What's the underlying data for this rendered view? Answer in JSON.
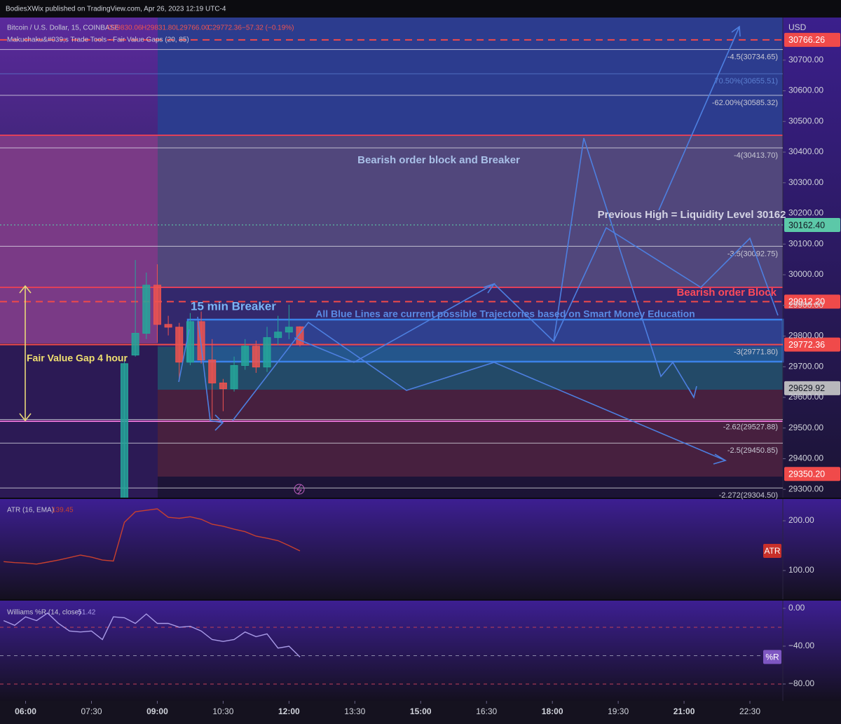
{
  "header": "BodiesXWix published on TradingView.com, Apr 26, 2023 12:19 UTC-4",
  "annotations": [
    "Bearish order block and Breaker",
    "Previous High = Liquidity Level 30162",
    "Bearish order Block",
    "15 min Breaker",
    "All Blue Lines are current possible Trajectories based on Smart Money Education",
    "Fair Value Gap 4 hour"
  ],
  "chart_data": [
    {
      "type": "candlestick",
      "title": "Bitcoin / U.S. Dollar, 15, COINBASE",
      "ohlc_labels": [
        "O29830.06",
        "H29831.80",
        "L29766.00",
        "C29772.36",
        "−57.32 (−0.19%)"
      ],
      "indicator": "Makuchaku&#039;s Trade Tools - Fair Value Gaps (20, 85)",
      "currency": "USD",
      "x": [
        "08:15",
        "08:30",
        "08:45",
        "09:00",
        "09:15",
        "09:30",
        "09:45",
        "10:00",
        "10:15",
        "10:30",
        "10:45",
        "11:00",
        "11:15",
        "11:30",
        "11:45",
        "12:00",
        "12:15"
      ],
      "open": [
        29250,
        29738,
        29809,
        29966,
        29838,
        29829,
        29715,
        29847,
        29722,
        29647,
        29628,
        29704,
        29767,
        29699,
        29795,
        29813,
        29830.06
      ],
      "high": [
        29722,
        30048,
        30007,
        30034,
        29866,
        29843,
        29875,
        29880,
        29790,
        29660,
        29733,
        29790,
        29785,
        29830,
        29866,
        29902,
        29831.8
      ],
      "low": [
        29200,
        29733,
        29790,
        29779,
        29802,
        29653,
        29705,
        29710,
        29528,
        29555,
        29619,
        29690,
        29680,
        29683,
        29770,
        29790,
        29766
      ],
      "close": [
        29710,
        29809,
        29966,
        29838,
        29829,
        29715,
        29847,
        29722,
        29647,
        29628,
        29704,
        29767,
        29699,
        29795,
        29813,
        29829,
        29772.36
      ],
      "up_color": "#26a69a",
      "down_color": "#ef5350",
      "xlim": [
        "05:25",
        "23:15"
      ],
      "xticks": [
        "06:00",
        "07:30",
        "09:00",
        "10:30",
        "12:00",
        "13:30",
        "15:00",
        "16:30",
        "18:00",
        "19:30",
        "21:00",
        "22:30"
      ],
      "ylim": [
        29273,
        30839
      ],
      "yticks": [
        {
          "value": 30700,
          "label": "30700.00"
        },
        {
          "value": 30600,
          "label": "30600.00"
        },
        {
          "value": 30500,
          "label": "30500.00"
        },
        {
          "value": 30400,
          "label": "30400.00"
        },
        {
          "value": 30300,
          "label": "30300.00"
        },
        {
          "value": 30200,
          "label": "30200.00"
        },
        {
          "value": 30100,
          "label": "30100.00"
        },
        {
          "value": 30000,
          "label": "30000.00"
        },
        {
          "value": 29900,
          "label": "29900.00"
        },
        {
          "value": 29800,
          "label": "29800.00"
        },
        {
          "value": 29700,
          "label": "29700.00"
        },
        {
          "value": 29600,
          "label": "29600.00"
        },
        {
          "value": 29500,
          "label": "29500.00"
        },
        {
          "value": 29400,
          "label": "29400.00"
        },
        {
          "value": 29300,
          "label": "29300.00"
        }
      ],
      "levels": [
        {
          "value": 30734.65,
          "label": "-4.5(30734.65)"
        },
        {
          "value": 30655.51,
          "label": "70.50%(30655.51)",
          "color": "#5b7fd0"
        },
        {
          "value": 30585.32,
          "label": "-62.00%(30585.32)"
        },
        {
          "value": 30413.7,
          "label": "-4(30413.70)"
        },
        {
          "value": 30092.75,
          "label": "-3.5(30092.75)"
        },
        {
          "value": 29771.8,
          "label": "-3(29771.80)"
        },
        {
          "value": 29527.88,
          "label": "-2.62(29527.88)"
        },
        {
          "value": 29450.85,
          "label": "-2.5(29450.85)"
        },
        {
          "value": 29304.5,
          "label": "-2.272(29304.50)"
        }
      ],
      "price_tags": [
        {
          "value": 30766.26,
          "label": "30766.26",
          "color": "#f04a4a",
          "text_color": "#ffffff",
          "line": "dashed"
        },
        {
          "value": 30162.4,
          "label": "30162.40",
          "color": "#5cc8a8",
          "text_color": "#131722",
          "line": "dotted"
        },
        {
          "value": 29912.2,
          "label": "29912.20",
          "color": "#f04a4a",
          "text_color": "#ffffff",
          "line": "dashed"
        },
        {
          "value": 29772.36,
          "label": "29772.36",
          "color": "#f04a4a",
          "text_color": "#ffffff",
          "line": "solid"
        },
        {
          "value": 29629.92,
          "label": "29629.92",
          "color": "#b8b8bc",
          "text_color": "#131722"
        },
        {
          "value": 29350.2,
          "label": "29350.20",
          "color": "#f04a4a",
          "text_color": "#ffffff"
        }
      ]
    },
    {
      "type": "line",
      "title": "ATR (16, EMA)",
      "color": "#c8402e",
      "tag": "ATR",
      "tag_color": "#c8302a",
      "x": [
        "05:30",
        "05:45",
        "06:00",
        "06:15",
        "06:30",
        "06:45",
        "07:00",
        "07:15",
        "07:30",
        "07:45",
        "08:00",
        "08:15",
        "08:30",
        "08:45",
        "09:00",
        "09:15",
        "09:30",
        "09:45",
        "10:00",
        "10:15",
        "10:30",
        "10:45",
        "11:00",
        "11:15",
        "11:30",
        "11:45",
        "12:00",
        "12:15"
      ],
      "values": [
        118,
        116,
        115,
        113,
        117,
        121,
        126,
        131,
        127,
        121,
        119,
        197,
        218,
        221,
        224,
        207,
        205,
        208,
        203,
        193,
        189,
        183,
        178,
        169,
        165,
        160,
        150,
        139.45
      ],
      "ylim": [
        42.3,
        243.7
      ],
      "yticks": [
        {
          "value": 200,
          "label": "200.00"
        },
        {
          "value": 100,
          "label": "100.00"
        }
      ]
    },
    {
      "type": "line",
      "title": "Williams %R (14, close)",
      "color": "#a99be8",
      "tag": "%R",
      "tag_color": "#7e57c2",
      "x": [
        "05:30",
        "05:45",
        "06:00",
        "06:15",
        "06:30",
        "06:45",
        "07:00",
        "07:15",
        "07:30",
        "07:45",
        "08:00",
        "08:15",
        "08:30",
        "08:45",
        "09:00",
        "09:15",
        "09:30",
        "09:45",
        "10:00",
        "10:15",
        "10:30",
        "10:45",
        "11:00",
        "11:15",
        "11:30",
        "11:45",
        "12:00",
        "12:15"
      ],
      "values": [
        -13,
        -18,
        -9,
        -13,
        -5,
        -16,
        -24,
        -25,
        -24,
        -33,
        -9,
        -10,
        -16,
        -6,
        -16,
        -16,
        -20,
        -19,
        -24,
        -33,
        -35,
        -33,
        -25,
        -30,
        -27,
        -42,
        -40,
        -51.42
      ],
      "levels": [
        {
          "value": -20,
          "color": "#c0405a"
        },
        {
          "value": -50,
          "color": "#8a88a8"
        },
        {
          "value": -80,
          "color": "#c0405a"
        }
      ],
      "ylim": [
        -97.8,
        8.1
      ],
      "yticks": [
        {
          "value": 0,
          "label": "0.00"
        },
        {
          "value": -40,
          "label": "−40.00"
        },
        {
          "value": -80,
          "label": "−80.00"
        }
      ]
    }
  ]
}
